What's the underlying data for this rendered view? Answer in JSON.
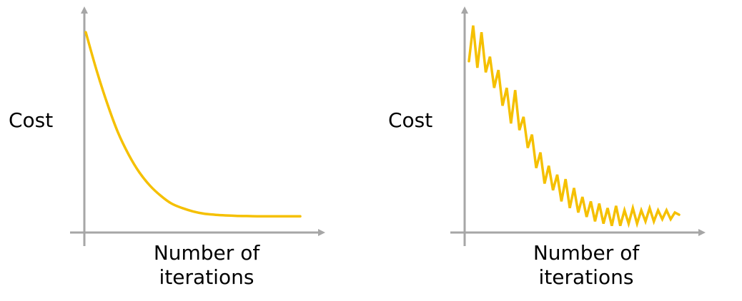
{
  "colors": {
    "curve": "#F5C000",
    "axis": "#A6A6A6",
    "text": "#000000"
  },
  "chart_data": [
    {
      "type": "line",
      "title": "",
      "ylabel": "Cost",
      "xlabel_lines": [
        "Number of",
        "iterations"
      ],
      "grid": false,
      "legend": "none",
      "xlim": [
        0,
        1
      ],
      "ylim": [
        0,
        1
      ],
      "series": [
        {
          "x": [
            0.0,
            0.05,
            0.1,
            0.15,
            0.2,
            0.25,
            0.3,
            0.35,
            0.4,
            0.45,
            0.5,
            0.55,
            0.6,
            0.65,
            0.7,
            0.75,
            0.8,
            0.85,
            0.9,
            0.95,
            1.0
          ],
          "y": [
            0.9,
            0.73,
            0.58,
            0.45,
            0.35,
            0.27,
            0.21,
            0.165,
            0.13,
            0.11,
            0.095,
            0.085,
            0.08,
            0.077,
            0.075,
            0.074,
            0.073,
            0.073,
            0.073,
            0.073,
            0.073
          ]
        }
      ]
    },
    {
      "type": "line",
      "title": "",
      "ylabel": "Cost",
      "xlabel_lines": [
        "Number of",
        "iterations"
      ],
      "grid": false,
      "legend": "none",
      "xlim": [
        0,
        1
      ],
      "ylim": [
        0,
        1
      ],
      "series": [
        {
          "x": [
            0.0,
            0.02,
            0.04,
            0.06,
            0.08,
            0.1,
            0.12,
            0.14,
            0.16,
            0.18,
            0.2,
            0.22,
            0.24,
            0.26,
            0.28,
            0.3,
            0.32,
            0.34,
            0.36,
            0.38,
            0.4,
            0.42,
            0.44,
            0.46,
            0.48,
            0.5,
            0.52,
            0.54,
            0.56,
            0.58,
            0.6,
            0.62,
            0.64,
            0.66,
            0.68,
            0.7,
            0.72,
            0.74,
            0.76,
            0.78,
            0.8,
            0.82,
            0.84,
            0.86,
            0.88,
            0.9,
            0.92,
            0.94,
            0.96,
            0.98,
            1.0
          ],
          "y": [
            0.77,
            0.93,
            0.74,
            0.9,
            0.72,
            0.79,
            0.65,
            0.73,
            0.57,
            0.65,
            0.49,
            0.64,
            0.46,
            0.52,
            0.38,
            0.44,
            0.29,
            0.36,
            0.22,
            0.3,
            0.19,
            0.26,
            0.14,
            0.24,
            0.11,
            0.2,
            0.09,
            0.16,
            0.07,
            0.14,
            0.05,
            0.13,
            0.04,
            0.11,
            0.03,
            0.12,
            0.03,
            0.1,
            0.04,
            0.11,
            0.04,
            0.1,
            0.05,
            0.11,
            0.05,
            0.1,
            0.06,
            0.1,
            0.06,
            0.09,
            0.08
          ]
        }
      ]
    }
  ]
}
